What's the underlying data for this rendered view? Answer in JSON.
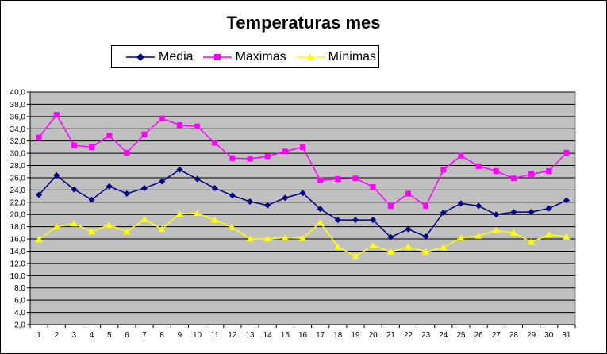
{
  "chart_data": {
    "type": "line",
    "title": "Temperaturas mes",
    "xlabel": "",
    "ylabel": "",
    "x": [
      1,
      2,
      3,
      4,
      5,
      6,
      7,
      8,
      9,
      10,
      11,
      12,
      13,
      14,
      15,
      16,
      17,
      18,
      19,
      20,
      21,
      22,
      23,
      24,
      25,
      26,
      27,
      28,
      29,
      30,
      31
    ],
    "ylim": [
      2.0,
      40.0
    ],
    "ytick_step": 2.0,
    "ytick_labels": [
      "2,0",
      "4,0",
      "6,0",
      "8,0",
      "10,0",
      "12,0",
      "14,0",
      "16,0",
      "18,0",
      "20,0",
      "22,0",
      "24,0",
      "26,0",
      "28,0",
      "30,0",
      "32,0",
      "34,0",
      "36,0",
      "38,0",
      "40,0"
    ],
    "grid": true,
    "legend_position": "top-center",
    "plot_background": "#C0C0C0",
    "series": [
      {
        "name": "Media",
        "color": "#000080",
        "marker": "diamond",
        "values": [
          23.2,
          26.4,
          24.1,
          22.4,
          24.6,
          23.4,
          24.3,
          25.4,
          27.3,
          25.8,
          24.3,
          23.1,
          22.1,
          21.5,
          22.7,
          23.5,
          20.9,
          19.1,
          19.1,
          19.1,
          16.3,
          17.6,
          16.4,
          20.3,
          21.8,
          21.4,
          20.0,
          20.4,
          20.4,
          21.0,
          22.3
        ]
      },
      {
        "name": "Maximas",
        "color": "#FF00FF",
        "marker": "square",
        "values": [
          32.6,
          36.3,
          31.3,
          31.0,
          32.9,
          30.1,
          33.1,
          35.7,
          34.6,
          34.4,
          31.7,
          29.2,
          29.1,
          29.5,
          30.3,
          31.0,
          25.6,
          25.8,
          25.9,
          24.5,
          21.4,
          23.4,
          21.4,
          27.3,
          29.6,
          27.9,
          27.1,
          25.9,
          26.6,
          27.1,
          30.1
        ]
      },
      {
        "name": "Mínimas",
        "color": "#FFFF00",
        "marker": "triangle",
        "values": [
          15.9,
          18.0,
          18.5,
          17.2,
          18.3,
          17.2,
          19.2,
          17.6,
          20.1,
          20.2,
          19.1,
          17.9,
          16.0,
          16.0,
          16.2,
          16.1,
          18.7,
          14.7,
          13.2,
          14.9,
          13.9,
          14.7,
          13.9,
          14.6,
          16.2,
          16.5,
          17.4,
          17.0,
          15.5,
          16.7,
          16.4
        ]
      }
    ]
  }
}
